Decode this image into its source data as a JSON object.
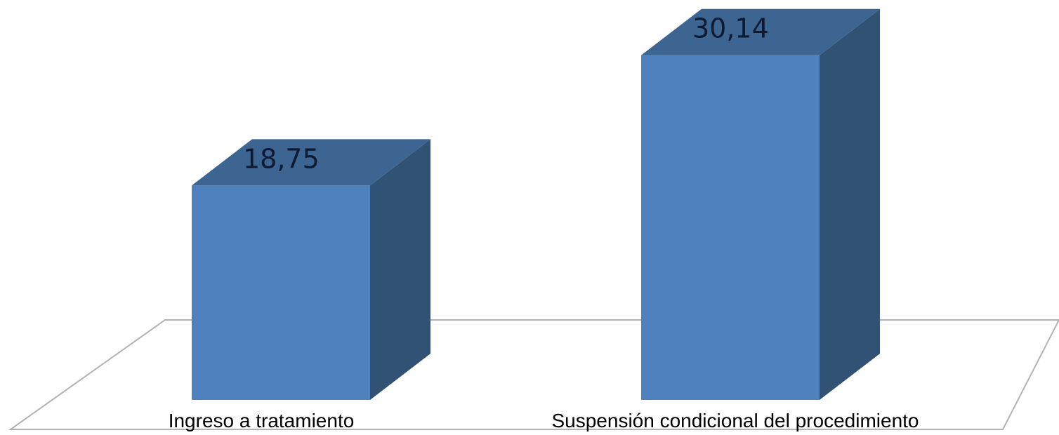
{
  "chart_data": {
    "type": "bar",
    "style": "3d-column",
    "categories": [
      "Ingreso a tratamiento",
      "Suspensión condicional del procedimiento"
    ],
    "values": [
      18.75,
      30.14
    ],
    "value_labels": [
      "18,75",
      "30,14"
    ],
    "title": "",
    "xlabel": "",
    "ylabel": "",
    "ylim": [
      0,
      34
    ],
    "grid": false,
    "legend": "none"
  },
  "colors": {
    "bar_front": "#4f81bd",
    "bar_top": "#3c6592",
    "bar_side": "#325275",
    "floor_line": "#b3b3b3"
  }
}
